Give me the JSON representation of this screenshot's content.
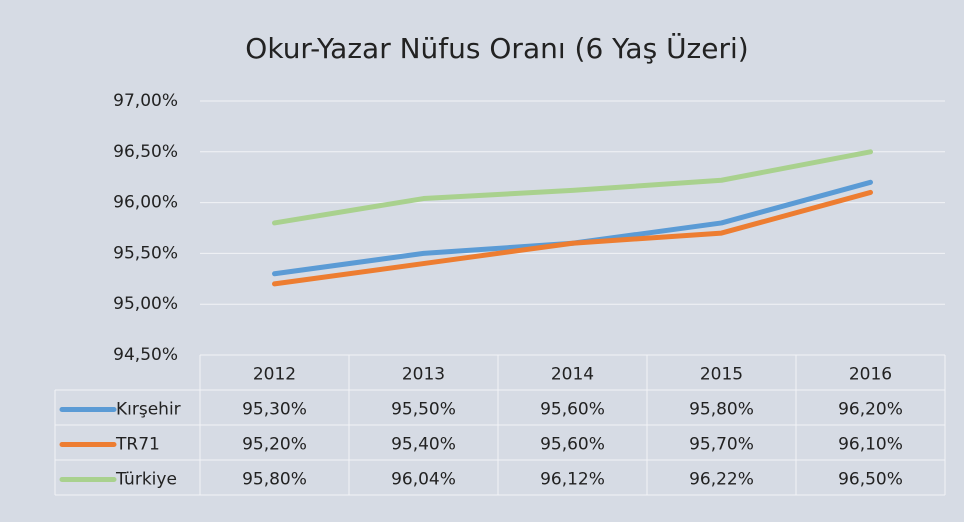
{
  "chart_data": {
    "type": "line",
    "title": "Okur-Yazar Nüfus Oranı (6 Yaş Üzeri)",
    "categories": [
      "2012",
      "2013",
      "2014",
      "2015",
      "2016"
    ],
    "series": [
      {
        "name": "Kırşehir",
        "color": "#5b9bd5",
        "values": [
          95.3,
          95.5,
          95.6,
          95.8,
          96.2
        ],
        "value_labels": [
          "95,30%",
          "95,50%",
          "95,60%",
          "95,80%",
          "96,20%"
        ]
      },
      {
        "name": "TR71",
        "color": "#ed7d31",
        "values": [
          95.2,
          95.4,
          95.6,
          95.7,
          96.1
        ],
        "value_labels": [
          "95,20%",
          "95,40%",
          "95,60%",
          "95,70%",
          "96,10%"
        ]
      },
      {
        "name": "Türkiye",
        "color": "#a9d18e",
        "values": [
          95.8,
          96.04,
          96.12,
          96.22,
          96.5
        ],
        "value_labels": [
          "95,80%",
          "96,04%",
          "96,12%",
          "96,22%",
          "96,50%"
        ]
      }
    ],
    "ylim": [
      94.5,
      97
    ],
    "yticks": [
      {
        "value": 94.5,
        "label": "94,50%"
      },
      {
        "value": 95,
        "label": "95,00%"
      },
      {
        "value": 95.5,
        "label": "95,50%"
      },
      {
        "value": 96,
        "label": "96,00%"
      },
      {
        "value": 96.5,
        "label": "96,50%"
      },
      {
        "value": 97,
        "label": "97,00%"
      }
    ],
    "grid": true
  }
}
